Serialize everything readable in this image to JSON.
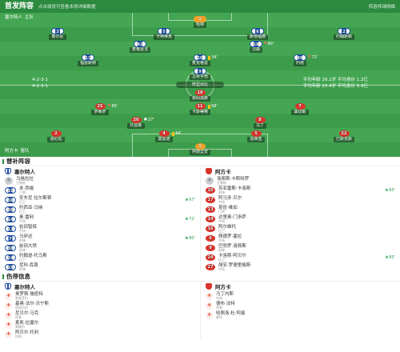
{
  "header": {
    "title": "首发阵容",
    "subtitle": "点击球员可查看本场详细数据",
    "right_link": "阵容传球网络"
  },
  "teams": {
    "home": {
      "name": "塞尔特人",
      "side_label": "主队",
      "formation": "4-2-3-1",
      "stats": "平均年龄 26.1岁  平均身价 1.2亿"
    },
    "away": {
      "name": "阿方卡",
      "side_label": "客队",
      "formation": "4-2-3-1",
      "stats": "平均年龄 25.4岁  平均身价 0.9亿"
    }
  },
  "pitch": {
    "center_label": "阵型对比",
    "home_players": [
      {
        "num": "1",
        "name": "哈特"
      },
      {
        "num": "3",
        "name": "泰尔尼"
      },
      {
        "num": "5",
        "name": "卡特维克"
      },
      {
        "num": "6",
        "name": "斯塔福德"
      },
      {
        "num": "2",
        "name": "约翰斯顿"
      },
      {
        "num": "42",
        "name": "麦格雷戈"
      },
      {
        "num": "18",
        "name": "汉森",
        "event": {
          "icon": "sub-out-icon",
          "minute": "80'"
        }
      },
      {
        "num": "11",
        "name": "福雷斯特"
      },
      {
        "num": "10",
        "name": "麦克格雷",
        "event": {
          "icon": "yellow-card-icon",
          "minute": "34'"
        }
      },
      {
        "num": "49",
        "name": "约塔",
        "event": {
          "icon": "sub-out-icon",
          "minute": "72'"
        }
      },
      {
        "num": "9",
        "name": "古桥亨梧"
      }
    ],
    "away_players": [
      {
        "num": "1",
        "name": "阿德里安"
      },
      {
        "num": "2",
        "name": "洛伦佐"
      },
      {
        "num": "4",
        "name": "莫雷诺",
        "event": {
          "icon": "yellow-card-icon",
          "minute": "44'"
        }
      },
      {
        "num": "5",
        "name": "加西亚"
      },
      {
        "num": "22",
        "name": "巴斯克斯"
      },
      {
        "num": "20",
        "name": "托雷斯",
        "event": {
          "icon": "goal-icon",
          "minute": "27'"
        }
      },
      {
        "num": "8",
        "name": "马丁"
      },
      {
        "num": "25",
        "name": "罗梅罗",
        "event": {
          "icon": "sub-out-icon",
          "minute": "65'"
        }
      },
      {
        "num": "11",
        "name": "卡斯蒂略",
        "event": {
          "icon": "yellow-card-icon",
          "minute": "58'"
        }
      },
      {
        "num": "7",
        "name": "桑切斯"
      },
      {
        "num": "18",
        "name": "费利克斯"
      }
    ]
  },
  "substitutes": {
    "title": "替补阵容",
    "home": {
      "team": "塞尔特人",
      "coach": {
        "name": "马格拉拉",
        "role": "主教练"
      },
      "players": [
        {
          "num": "31",
          "name": "本·西格",
          "pos": "门将"
        },
        {
          "num": "56",
          "name": "安东尼·拉尔斯顿",
          "pos": "后卫",
          "event": {
            "icon": "sub-in-icon",
            "minute": "67'"
          }
        },
        {
          "num": "88",
          "name": "约西亚·马纳",
          "pos": "后卫"
        },
        {
          "num": "14",
          "name": "奥·雷利",
          "pos": "中场",
          "event": {
            "icon": "sub-in-icon",
            "minute": "72'"
          }
        },
        {
          "num": "13",
          "name": "岩田智辉",
          "pos": "中场"
        },
        {
          "num": "7",
          "name": "马伊达",
          "pos": "前锋",
          "event": {
            "icon": "sub-in-icon",
            "minute": "80'"
          }
        },
        {
          "num": "38",
          "name": "前田大然",
          "pos": "前锋"
        },
        {
          "num": "24",
          "name": "约翰逊·托马斯",
          "pos": "后卫"
        },
        {
          "num": "19",
          "name": "尼科·库恩",
          "pos": "前锋"
        }
      ]
    },
    "away": {
      "team": "阿方卡",
      "coach": {
        "name": "洛佩斯·卡斯特罗",
        "role": "主教练"
      },
      "players": [
        {
          "num": "10",
          "name": "苏亚雷斯·卡洛斯",
          "pos": "前锋",
          "event": {
            "icon": "sub-in-icon",
            "minute": "65'"
          }
        },
        {
          "num": "17",
          "name": "阿马多·贝尔",
          "pos": "中场"
        },
        {
          "num": "13",
          "name": "恩佐·维加",
          "pos": "门将"
        },
        {
          "num": "14",
          "name": "达里奥·门多萨",
          "pos": "中场"
        },
        {
          "num": "16",
          "name": "阿尔维托",
          "pos": "后卫"
        },
        {
          "num": "6",
          "name": "佩德罗·塞拉",
          "pos": "中场"
        },
        {
          "num": "9",
          "name": "巴勃罗·洛佩斯",
          "pos": "前锋"
        },
        {
          "num": "24",
          "name": "卡洛斯·阿贝尔",
          "pos": "后卫",
          "event": {
            "icon": "sub-in-icon",
            "minute": "85'"
          }
        },
        {
          "num": "27",
          "name": "胡安·罗德里格斯",
          "pos": "中场"
        }
      ]
    }
  },
  "injuries": {
    "title": "伤停信息",
    "home": {
      "team": "塞尔特人",
      "players": [
        {
          "name": "奥罗斯·施密特",
          "reason": "膝盖受伤"
        },
        {
          "name": "基奥·法尔·沃宁斯",
          "reason": "肌肉拉伤"
        },
        {
          "name": "尼贝尔·马克",
          "reason": "停赛"
        },
        {
          "name": "麦凯·拉塞尔",
          "reason": "脚踝伤"
        },
        {
          "name": "阿贝尔·托利",
          "reason": "伤病"
        }
      ]
    },
    "away": {
      "team": "阿方卡",
      "players": [
        {
          "name": "马丁内斯",
          "reason": "伤病"
        },
        {
          "name": "德布·法特",
          "reason": "停赛"
        },
        {
          "name": "哈佩洛·杜·阿曼",
          "reason": "膝伤"
        }
      ]
    }
  },
  "colors": {
    "header": "#2b8a3e",
    "pitch": "#44a652",
    "home_kit": "#1c4fa3",
    "away_kit": "#d9342b",
    "keeper_kit": "#f2a126",
    "sub_in": "#27a04a",
    "sub_out": "#d9342b",
    "yellow_card": "#f5c518"
  }
}
